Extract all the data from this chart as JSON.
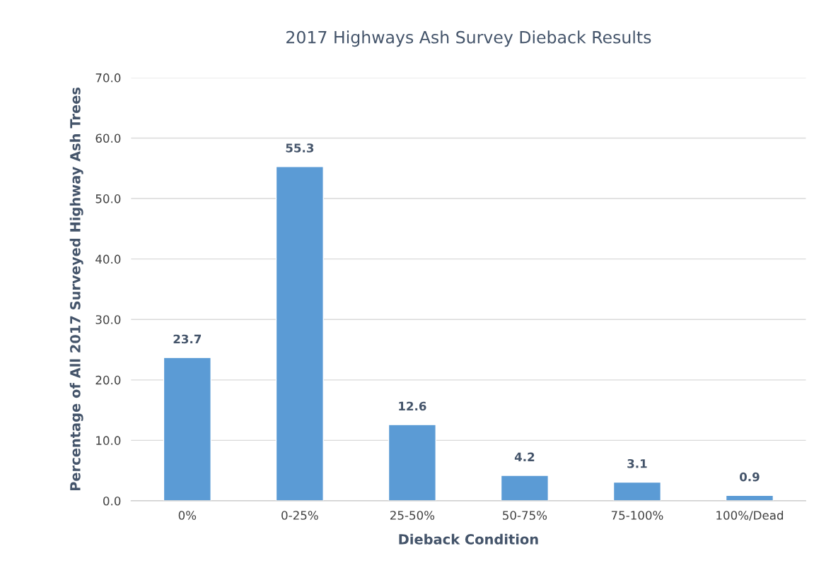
{
  "chart_data": {
    "type": "bar",
    "title": "2017 Highways Ash Survey Dieback Results",
    "xlabel": "Dieback Condition",
    "ylabel": "Percentage of All 2017 Surveyed Highway Ash Trees",
    "categories": [
      "0%",
      "0-25%",
      "25-50%",
      "50-75%",
      "75-100%",
      "100%/Dead"
    ],
    "values": [
      23.7,
      55.3,
      12.6,
      4.2,
      3.1,
      0.9
    ],
    "color": "#5b9bd5",
    "ylim": [
      0,
      70
    ],
    "yticks": [
      {
        "value": 0,
        "label": "0.0"
      },
      {
        "value": 10,
        "label": "10.0"
      },
      {
        "value": 20,
        "label": "20.0"
      },
      {
        "value": 30,
        "label": "30.0"
      },
      {
        "value": 40,
        "label": "40.0"
      },
      {
        "value": 50,
        "label": "50.0"
      },
      {
        "value": 60,
        "label": "60.0"
      },
      {
        "value": 70,
        "label": "70.0"
      }
    ],
    "grid": "y",
    "data_labels": true
  }
}
